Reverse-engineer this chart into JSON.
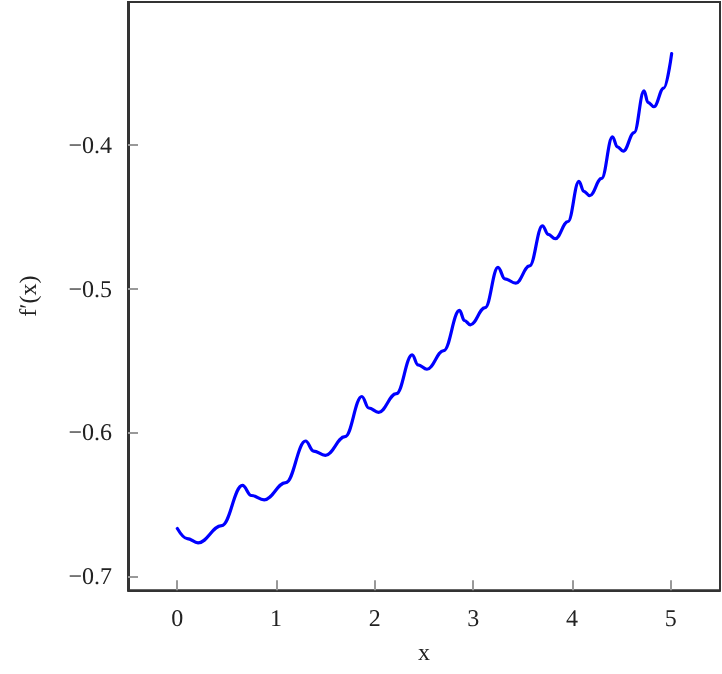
{
  "chart_data": {
    "type": "line",
    "xlabel": "x",
    "ylabel": "f′(x)",
    "xlim": [
      -0.5,
      5.5
    ],
    "xticks": [
      0,
      1,
      2,
      3,
      4,
      5
    ],
    "ylim": [
      -0.71,
      -0.3
    ],
    "yticks": [
      -0.7,
      -0.6,
      -0.5,
      -0.4
    ],
    "grid": false,
    "marker": "none",
    "line_style": "solid",
    "series": [
      {
        "color": "#0000ff",
        "x": [
          0,
          0.1,
          0.21,
          0.45,
          0.66,
          0.75,
          0.88,
          1.1,
          1.3,
          1.38,
          1.5,
          1.7,
          1.87,
          1.94,
          2.04,
          2.22,
          2.38,
          2.44,
          2.53,
          2.7,
          2.86,
          2.91,
          2.97,
          3.12,
          3.25,
          3.32,
          3.43,
          3.57,
          3.7,
          3.76,
          3.83,
          3.96,
          4.07,
          4.12,
          4.18,
          4.3,
          4.41,
          4.46,
          4.52,
          4.63,
          4.73,
          4.77,
          4.83,
          4.93,
          5.01
        ],
        "values": [
          -0.667,
          -0.674,
          -0.677,
          -0.665,
          -0.637,
          -0.644,
          -0.647,
          -0.635,
          -0.606,
          -0.613,
          -0.616,
          -0.603,
          -0.575,
          -0.583,
          -0.586,
          -0.573,
          -0.546,
          -0.553,
          -0.556,
          -0.543,
          -0.515,
          -0.522,
          -0.525,
          -0.513,
          -0.485,
          -0.493,
          -0.496,
          -0.484,
          -0.456,
          -0.462,
          -0.465,
          -0.453,
          -0.425,
          -0.432,
          -0.435,
          -0.423,
          -0.394,
          -0.401,
          -0.404,
          -0.391,
          -0.362,
          -0.37,
          -0.373,
          -0.36,
          -0.336
        ]
      }
    ]
  }
}
